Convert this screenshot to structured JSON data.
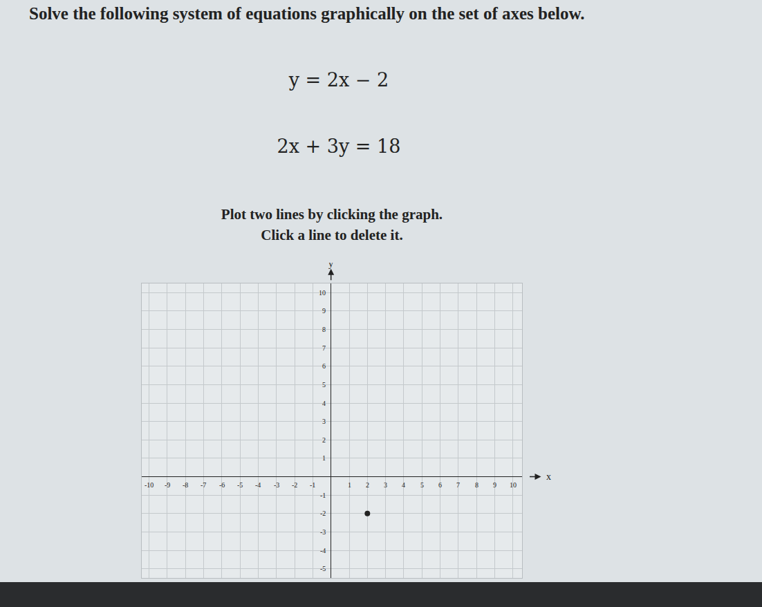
{
  "chart_data": {
    "type": "scatter",
    "x": [
      2
    ],
    "values": [
      -2
    ],
    "color": "#222222",
    "marker": "circle",
    "xlabel": "x",
    "ylabel": "y",
    "xlim": [
      -10.4,
      10.5
    ],
    "xticks": [
      -10,
      -9,
      -8,
      -7,
      -6,
      -5,
      -4,
      -3,
      -2,
      -1,
      1,
      2,
      3,
      4,
      5,
      6,
      7,
      8,
      9,
      10
    ],
    "ylim": [
      -5.5,
      10.5
    ],
    "yticks": [
      -5,
      -4,
      -3,
      -2,
      -1,
      1,
      2,
      3,
      4,
      5,
      6,
      7,
      8,
      9,
      10
    ],
    "grid": true
  },
  "page": {
    "prompt": "Solve the following system of equations graphically on the set of axes below.",
    "equations": [
      "y = 2x − 2",
      "2x + 3y = 18"
    ],
    "instructions": [
      "Plot two lines by clicking the graph.",
      "Click a line to delete it."
    ]
  }
}
